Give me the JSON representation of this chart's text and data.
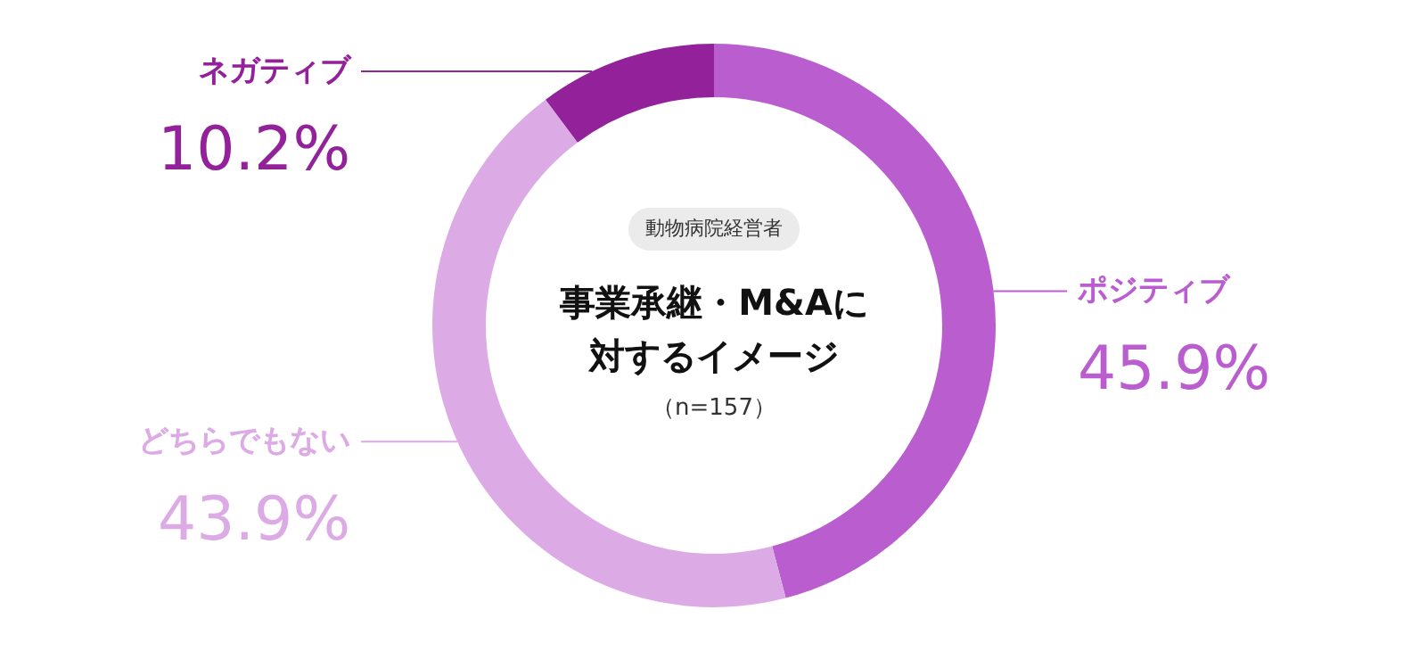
{
  "chart_data": {
    "type": "donut",
    "title": "事業承継・M&Aに対するイメージ",
    "subtitle": "動物病院経営者",
    "annotations": [
      "（n=157）"
    ],
    "categories": [
      "ポジティブ",
      "どちらでもない",
      "ネガティブ"
    ],
    "values": [
      45.9,
      43.9,
      10.2
    ],
    "colors": [
      "#b95dcf",
      "#dcabe6",
      "#92219a"
    ],
    "value_labels": [
      "45.9%",
      "43.9%",
      "10.2%"
    ]
  }
}
